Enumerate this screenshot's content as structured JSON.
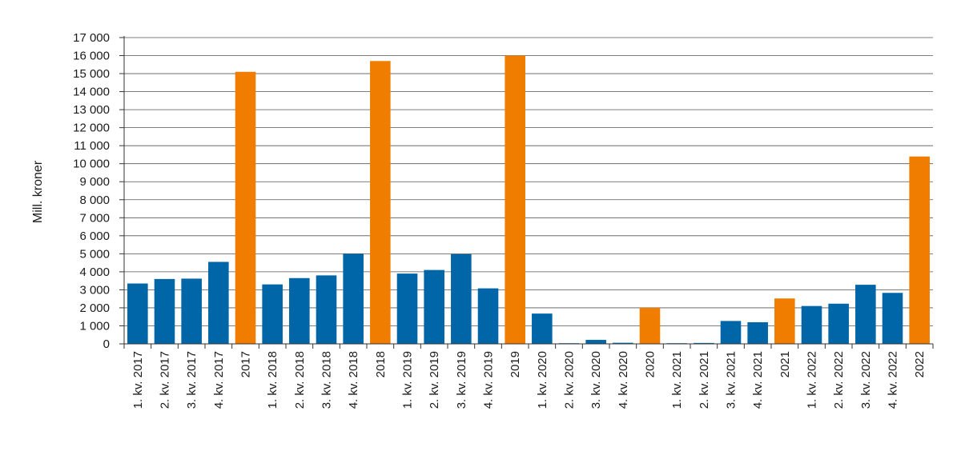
{
  "chart_data": {
    "type": "bar",
    "title": "",
    "xlabel": "",
    "ylabel": "Mill. kroner",
    "ylim": [
      0,
      17000
    ],
    "yticks": [
      0,
      1000,
      2000,
      3000,
      4000,
      5000,
      6000,
      7000,
      8000,
      9000,
      10000,
      11000,
      12000,
      13000,
      14000,
      15000,
      16000,
      17000
    ],
    "ytick_labels": [
      "0",
      "1 000",
      "2 000",
      "3 000",
      "4 000",
      "5 000",
      "6 000",
      "7 000",
      "8 000",
      "9 000",
      "10 000",
      "11 000",
      "12 000",
      "13 000",
      "14 000",
      "15 000",
      "16 000",
      "17 000"
    ],
    "grid": true,
    "legend": "none",
    "categories": [
      "1. kv. 2017",
      "2. kv. 2017",
      "3. kv. 2017",
      "4. kv. 2017",
      "2017",
      "1. kv. 2018",
      "2. kv. 2018",
      "3. kv. 2018",
      "4. kv. 2018",
      "2018",
      "1. kv. 2019",
      "2. kv. 2019",
      "3. kv. 2019",
      "4. kv. 2019",
      "2019",
      "1. kv. 2020",
      "2. kv. 2020",
      "3. kv. 2020",
      "4. kv. 2020",
      "2020",
      "1. kv. 2021",
      "2. kv. 2021",
      "3. kv. 2021",
      "4. kv. 2021",
      "2021",
      "1. kv. 2022",
      "2. kv. 2022",
      "3. kv. 2022",
      "4. kv. 2022",
      "2022"
    ],
    "values": [
      3350,
      3600,
      3620,
      4550,
      15100,
      3300,
      3650,
      3800,
      5000,
      15700,
      3900,
      4100,
      4980,
      3080,
      16000,
      1680,
      10,
      220,
      60,
      2000,
      10,
      50,
      1270,
      1200,
      2520,
      2100,
      2230,
      3280,
      2830,
      10400
    ],
    "kind": [
      "quarter",
      "quarter",
      "quarter",
      "quarter",
      "year",
      "quarter",
      "quarter",
      "quarter",
      "quarter",
      "year",
      "quarter",
      "quarter",
      "quarter",
      "quarter",
      "year",
      "quarter",
      "quarter",
      "quarter",
      "quarter",
      "year",
      "quarter",
      "quarter",
      "quarter",
      "quarter",
      "year",
      "quarter",
      "quarter",
      "quarter",
      "quarter",
      "year"
    ],
    "colors": {
      "quarter": "#0066a8",
      "year": "#f07d00",
      "grid": "#555555",
      "axis": "#333333"
    }
  }
}
